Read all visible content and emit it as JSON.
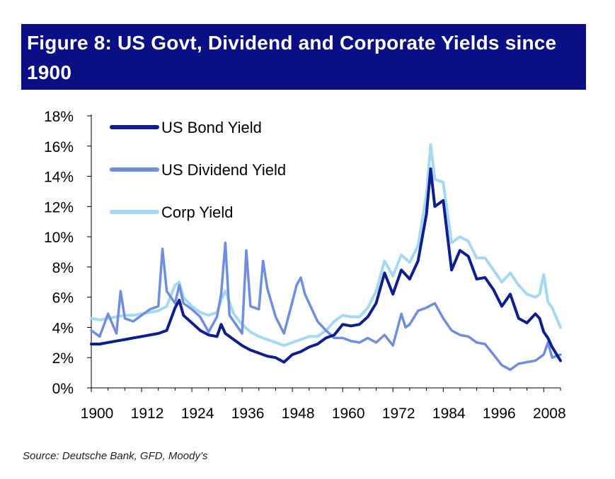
{
  "header": {
    "title": "Figure 8: US Govt, Dividend and Corporate Yields since 1900"
  },
  "footer": {
    "source": "Source: Deutsche Bank, GFD, Moody’s"
  },
  "colors": {
    "banner": "#0a0f85",
    "bond": "#0b1f91",
    "dividend": "#6f8ee0",
    "corp": "#a5d8f3"
  },
  "chart_data": {
    "type": "line",
    "title": "Figure 8: US Govt, Dividend and Corporate Yields since 1900",
    "xlabel": "",
    "ylabel": "",
    "xlim": [
      1900,
      2012
    ],
    "ylim": [
      0,
      18
    ],
    "x_ticks": [
      "1900",
      "1912",
      "1924",
      "1936",
      "1948",
      "1960",
      "1972",
      "1984",
      "1996",
      "2008"
    ],
    "y_ticks": [
      "0%",
      "2%",
      "4%",
      "6%",
      "8%",
      "10%",
      "12%",
      "14%",
      "16%",
      "18%"
    ],
    "legend_position": "top-left",
    "grid": false,
    "series": [
      {
        "name": "US Bond Yield",
        "color": "#0b1f91",
        "x": [
          1900,
          1902,
          1904,
          1906,
          1908,
          1910,
          1912,
          1914,
          1916,
          1918,
          1920,
          1921,
          1922,
          1924,
          1926,
          1928,
          1930,
          1931,
          1932,
          1934,
          1936,
          1938,
          1940,
          1942,
          1944,
          1946,
          1948,
          1950,
          1952,
          1954,
          1956,
          1958,
          1960,
          1962,
          1964,
          1966,
          1968,
          1970,
          1972,
          1974,
          1976,
          1978,
          1980,
          1981,
          1982,
          1984,
          1986,
          1988,
          1990,
          1992,
          1994,
          1996,
          1998,
          2000,
          2002,
          2004,
          2006,
          2007,
          2008,
          2009,
          2010,
          2012
        ],
        "y": [
          2.9,
          2.9,
          3.0,
          3.1,
          3.2,
          3.3,
          3.4,
          3.5,
          3.6,
          3.8,
          5.3,
          5.8,
          4.8,
          4.3,
          3.8,
          3.5,
          3.4,
          4.2,
          3.6,
          3.2,
          2.8,
          2.5,
          2.3,
          2.1,
          2.0,
          1.7,
          2.2,
          2.4,
          2.7,
          2.9,
          3.3,
          3.5,
          4.2,
          4.1,
          4.2,
          4.7,
          5.6,
          7.6,
          6.2,
          7.8,
          7.2,
          8.4,
          11.5,
          14.5,
          12.0,
          12.4,
          7.8,
          9.1,
          8.7,
          7.2,
          7.3,
          6.5,
          5.4,
          6.2,
          4.6,
          4.3,
          4.9,
          4.6,
          3.7,
          3.3,
          2.7,
          1.8
        ]
      },
      {
        "name": "US Dividend Yield",
        "color": "#6f8ee0",
        "x": [
          1900,
          1902,
          1904,
          1906,
          1907,
          1908,
          1910,
          1912,
          1914,
          1916,
          1917,
          1918,
          1920,
          1921,
          1922,
          1924,
          1926,
          1928,
          1930,
          1931,
          1932,
          1933,
          1934,
          1936,
          1937,
          1938,
          1940,
          1941,
          1942,
          1944,
          1946,
          1948,
          1949,
          1950,
          1951,
          1952,
          1954,
          1956,
          1958,
          1960,
          1962,
          1964,
          1966,
          1968,
          1970,
          1972,
          1974,
          1975,
          1976,
          1978,
          1980,
          1982,
          1984,
          1986,
          1988,
          1990,
          1992,
          1994,
          1996,
          1998,
          2000,
          2002,
          2004,
          2006,
          2008,
          2009,
          2010,
          2012
        ],
        "y": [
          3.8,
          3.4,
          4.9,
          3.6,
          6.4,
          4.6,
          4.4,
          4.8,
          5.2,
          5.4,
          9.2,
          6.4,
          5.6,
          6.8,
          5.6,
          5.2,
          4.7,
          3.7,
          4.7,
          6.2,
          9.6,
          4.8,
          4.4,
          3.6,
          9.1,
          5.4,
          5.2,
          8.4,
          6.6,
          4.7,
          3.6,
          5.7,
          6.8,
          7.3,
          6.2,
          5.6,
          4.4,
          3.8,
          3.3,
          3.3,
          3.1,
          3.0,
          3.3,
          3.0,
          3.5,
          2.8,
          4.9,
          4.0,
          4.2,
          5.1,
          5.3,
          5.6,
          4.6,
          3.8,
          3.5,
          3.4,
          3.0,
          2.9,
          2.2,
          1.5,
          1.2,
          1.6,
          1.7,
          1.8,
          2.2,
          3.0,
          2.0,
          2.2
        ]
      },
      {
        "name": "Corp Yield",
        "color": "#a5d8f3",
        "x": [
          1900,
          1902,
          1904,
          1906,
          1908,
          1910,
          1912,
          1914,
          1916,
          1918,
          1920,
          1921,
          1922,
          1924,
          1926,
          1928,
          1930,
          1931,
          1932,
          1934,
          1936,
          1938,
          1940,
          1942,
          1944,
          1946,
          1948,
          1950,
          1952,
          1954,
          1956,
          1958,
          1960,
          1962,
          1964,
          1966,
          1968,
          1970,
          1972,
          1974,
          1976,
          1978,
          1980,
          1981,
          1982,
          1984,
          1986,
          1988,
          1990,
          1992,
          1994,
          1996,
          1998,
          2000,
          2002,
          2004,
          2006,
          2007,
          2008,
          2009,
          2010,
          2012
        ],
        "y": [
          4.6,
          4.5,
          4.6,
          4.7,
          4.8,
          4.8,
          4.9,
          5.0,
          5.1,
          5.4,
          6.8,
          7.0,
          6.0,
          5.4,
          5.0,
          4.8,
          5.0,
          5.8,
          6.4,
          4.9,
          4.2,
          3.7,
          3.4,
          3.2,
          3.0,
          2.8,
          3.0,
          3.2,
          3.4,
          3.4,
          3.8,
          4.4,
          4.8,
          4.7,
          4.7,
          5.3,
          6.4,
          8.4,
          7.4,
          8.8,
          8.3,
          9.4,
          12.8,
          16.1,
          13.8,
          13.6,
          9.6,
          10.0,
          9.7,
          8.6,
          8.6,
          7.8,
          7.0,
          7.6,
          6.8,
          6.2,
          6.0,
          6.2,
          7.5,
          5.7,
          5.3,
          4.0
        ]
      }
    ]
  }
}
